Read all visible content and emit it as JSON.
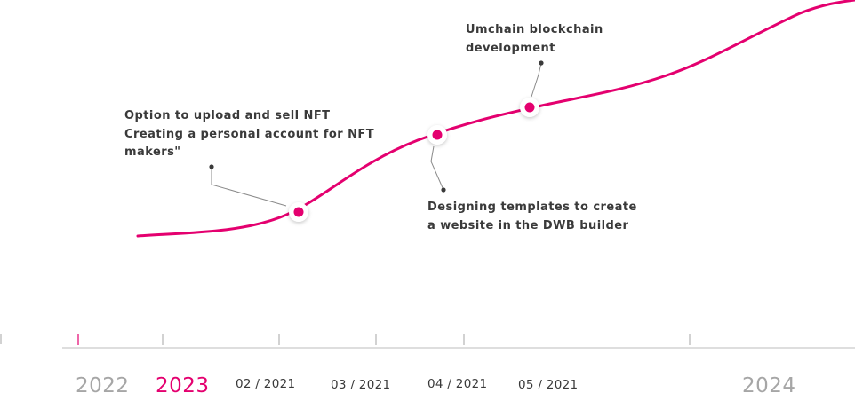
{
  "colors": {
    "accent": "#e4006f",
    "text": "#3a3a3a",
    "muted_year": "#a6a6a6",
    "axis": "#bdbdbd"
  },
  "milestones": [
    {
      "id": "nft",
      "lines": [
        "Option to upload and sell NFT",
        "Creating a personal account for NFT",
        "makers\""
      ]
    },
    {
      "id": "templates",
      "lines": [
        "Designing templates to create",
        "a website in the DWB builder"
      ]
    },
    {
      "id": "umchain",
      "lines": [
        "Umchain blockchain",
        "development"
      ]
    }
  ],
  "timeline": {
    "labels": [
      {
        "text": "2022",
        "kind": "year",
        "active": false
      },
      {
        "text": "2023",
        "kind": "year",
        "active": true
      },
      {
        "text": "02 / 2021",
        "kind": "month",
        "active": false
      },
      {
        "text": "03 / 2021",
        "kind": "month",
        "active": false
      },
      {
        "text": "04 / 2021",
        "kind": "month",
        "active": false
      },
      {
        "text": "05 / 2021",
        "kind": "month",
        "active": false
      },
      {
        "text": "2024",
        "kind": "year",
        "active": false
      }
    ]
  }
}
